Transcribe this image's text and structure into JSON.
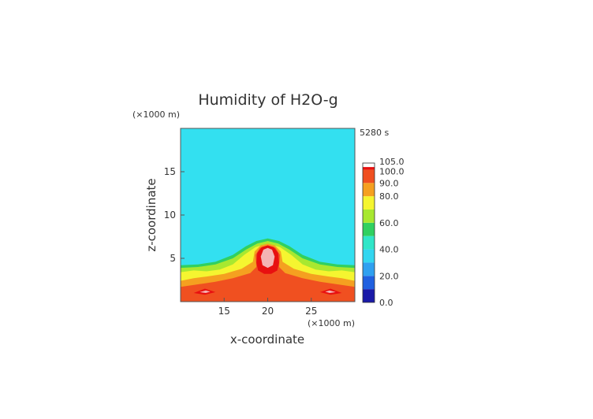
{
  "chart_data": {
    "type": "heatmap",
    "title": "Humidity of H2O-g",
    "xlabel": "x-coordinate",
    "ylabel": "z-coordinate",
    "x_unit": "(×1000 m)",
    "y_unit": "(×1000 m)",
    "time_label": "5280 s",
    "xlim": [
      10,
      30
    ],
    "ylim": [
      0,
      20
    ],
    "x_ticks": [
      15,
      20,
      25
    ],
    "y_ticks": [
      5,
      10,
      15
    ],
    "x_tick_labels": [
      "15",
      "20",
      "25"
    ],
    "y_tick_labels": [
      "5",
      "10",
      "15"
    ],
    "colorbar": {
      "range": [
        0,
        105
      ],
      "tick_values": [
        0,
        20,
        40,
        60,
        80,
        90,
        100,
        105
      ],
      "tick_labels": [
        "0.0",
        "20.0",
        "40.0",
        "60.0",
        "80.0",
        "90.0",
        "100.0",
        "105.0"
      ],
      "levels": [
        {
          "from": 0,
          "to": 10,
          "color": "#1a1aa8"
        },
        {
          "from": 10,
          "to": 20,
          "color": "#2060e0"
        },
        {
          "from": 20,
          "to": 30,
          "color": "#2fa0f0"
        },
        {
          "from": 30,
          "to": 40,
          "color": "#33d6f0"
        },
        {
          "from": 40,
          "to": 50,
          "color": "#30e6c8"
        },
        {
          "from": 50,
          "to": 60,
          "color": "#30d060"
        },
        {
          "from": 60,
          "to": 70,
          "color": "#a8e830"
        },
        {
          "from": 70,
          "to": 80,
          "color": "#f5f530"
        },
        {
          "from": 80,
          "to": 90,
          "color": "#f5a020"
        },
        {
          "from": 90,
          "to": 100,
          "color": "#f05020"
        },
        {
          "from": 100,
          "to": 102,
          "color": "#e81010"
        },
        {
          "from": 102,
          "to": 105,
          "color": "#ffffff"
        }
      ]
    },
    "background_color": "#33e0f0",
    "regions": [
      {
        "level": "50-60",
        "color": "#30d060",
        "points": [
          [
            10,
            0
          ],
          [
            10,
            4.2
          ],
          [
            12,
            4.3
          ],
          [
            14,
            4.6
          ],
          [
            16,
            5.4
          ],
          [
            17.5,
            6.4
          ],
          [
            18.7,
            7.0
          ],
          [
            20,
            7.3
          ],
          [
            21.3,
            7.0
          ],
          [
            22.5,
            6.4
          ],
          [
            24,
            5.4
          ],
          [
            26,
            4.6
          ],
          [
            28,
            4.3
          ],
          [
            30,
            4.2
          ],
          [
            30,
            0
          ]
        ]
      },
      {
        "level": "60-70",
        "color": "#a8e830",
        "points": [
          [
            10,
            0
          ],
          [
            10,
            3.9
          ],
          [
            12,
            4.0
          ],
          [
            14,
            4.3
          ],
          [
            16,
            5.0
          ],
          [
            17.5,
            6.0
          ],
          [
            18.8,
            6.7
          ],
          [
            20,
            7.0
          ],
          [
            21.2,
            6.7
          ],
          [
            22.5,
            6.0
          ],
          [
            24,
            5.0
          ],
          [
            26,
            4.3
          ],
          [
            28,
            4.0
          ],
          [
            30,
            3.9
          ],
          [
            30,
            0
          ]
        ]
      },
      {
        "level": "70-80",
        "color": "#f5f530",
        "points": [
          [
            10,
            0
          ],
          [
            10,
            3.4
          ],
          [
            11.5,
            3.6
          ],
          [
            13,
            3.5
          ],
          [
            14.5,
            3.7
          ],
          [
            16,
            4.3
          ],
          [
            17.3,
            5.4
          ],
          [
            18.6,
            6.3
          ],
          [
            20,
            6.7
          ],
          [
            21.4,
            6.3
          ],
          [
            22.7,
            5.4
          ],
          [
            24,
            4.3
          ],
          [
            25.5,
            3.7
          ],
          [
            27,
            3.5
          ],
          [
            28.5,
            3.6
          ],
          [
            30,
            3.4
          ],
          [
            30,
            0
          ]
        ]
      },
      {
        "level": "80-90",
        "color": "#f5a020",
        "points": [
          [
            10,
            0
          ],
          [
            10,
            2.4
          ],
          [
            11.5,
            2.7
          ],
          [
            13,
            2.9
          ],
          [
            15,
            3.2
          ],
          [
            17,
            3.8
          ],
          [
            18.3,
            4.6
          ],
          [
            18.5,
            5.8
          ],
          [
            19.2,
            6.5
          ],
          [
            20,
            6.7
          ],
          [
            20.8,
            6.5
          ],
          [
            21.5,
            5.8
          ],
          [
            21.7,
            4.6
          ],
          [
            23,
            3.8
          ],
          [
            25,
            3.2
          ],
          [
            27,
            2.9
          ],
          [
            28.5,
            2.7
          ],
          [
            30,
            2.4
          ],
          [
            30,
            0
          ]
        ]
      },
      {
        "level": "90-100",
        "color": "#f05020",
        "points": [
          [
            10,
            0
          ],
          [
            10,
            1.7
          ],
          [
            12,
            2.0
          ],
          [
            14,
            2.3
          ],
          [
            16,
            2.7
          ],
          [
            18,
            3.3
          ],
          [
            18.7,
            4.0
          ],
          [
            18.6,
            5.4
          ],
          [
            19.1,
            6.2
          ],
          [
            20,
            6.5
          ],
          [
            20.9,
            6.2
          ],
          [
            21.4,
            5.4
          ],
          [
            21.3,
            4.0
          ],
          [
            22,
            3.3
          ],
          [
            24,
            2.7
          ],
          [
            26,
            2.3
          ],
          [
            28,
            2.0
          ],
          [
            30,
            1.7
          ],
          [
            30,
            0
          ]
        ]
      },
      {
        "level": "100-102",
        "color": "#e81010",
        "points": [
          [
            18.9,
            3.6
          ],
          [
            18.7,
            4.5
          ],
          [
            18.8,
            5.6
          ],
          [
            19.3,
            6.3
          ],
          [
            20,
            6.5
          ],
          [
            20.7,
            6.3
          ],
          [
            21.2,
            5.6
          ],
          [
            21.3,
            4.5
          ],
          [
            21.1,
            3.6
          ],
          [
            20.4,
            3.2
          ],
          [
            19.6,
            3.2
          ]
        ]
      },
      {
        "level": "100-102",
        "color": "#e81010",
        "points": [
          [
            11.5,
            1.0
          ],
          [
            12.8,
            0.8
          ],
          [
            14,
            1.1
          ],
          [
            12.8,
            1.5
          ]
        ]
      },
      {
        "level": "100-102",
        "color": "#e81010",
        "points": [
          [
            26,
            1.1
          ],
          [
            27.2,
            0.8
          ],
          [
            28.5,
            1.0
          ],
          [
            27.2,
            1.5
          ]
        ]
      },
      {
        "level": ">102",
        "color": "#f4b4b4",
        "points": [
          [
            19.4,
            4.2
          ],
          [
            19.2,
            5.2
          ],
          [
            19.5,
            6.0
          ],
          [
            20,
            6.2
          ],
          [
            20.5,
            6.0
          ],
          [
            20.8,
            5.2
          ],
          [
            20.6,
            4.2
          ],
          [
            20,
            3.9
          ]
        ]
      },
      {
        "level": ">102",
        "color": "#f4b4b4",
        "points": [
          [
            12.2,
            1.1
          ],
          [
            12.9,
            1.0
          ],
          [
            13.4,
            1.15
          ],
          [
            12.9,
            1.3
          ]
        ]
      },
      {
        "level": ">102",
        "color": "#f4b4b4",
        "points": [
          [
            26.6,
            1.15
          ],
          [
            27.1,
            1.0
          ],
          [
            27.8,
            1.1
          ],
          [
            27.1,
            1.3
          ]
        ]
      }
    ]
  }
}
